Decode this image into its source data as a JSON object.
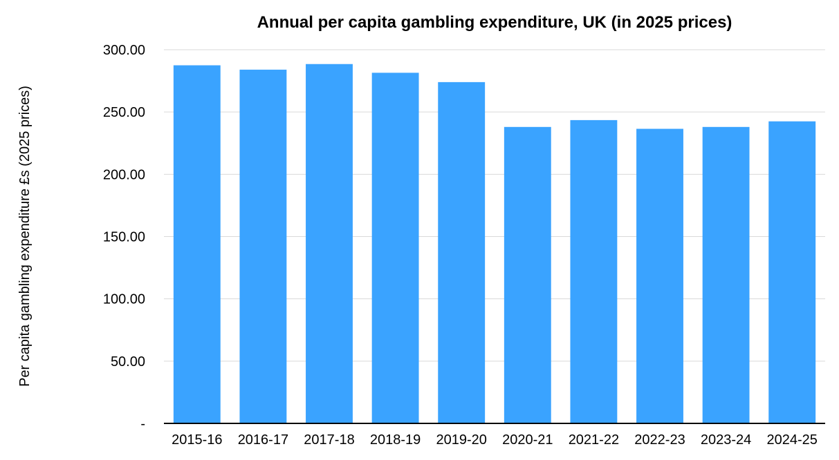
{
  "chart_data": {
    "type": "bar",
    "title": "Annual per capita gambling expenditure, UK (in 2025 prices)",
    "xlabel": "",
    "ylabel": "Per capita gambling expenditure £s (2025 prices)",
    "categories": [
      "2015-16",
      "2016-17",
      "2017-18",
      "2018-19",
      "2019-20",
      "2020-21",
      "2021-22",
      "2022-23",
      "2023-24",
      "2024-25"
    ],
    "values": [
      287.5,
      284.0,
      288.5,
      281.5,
      274.0,
      238.0,
      243.5,
      236.5,
      238.0,
      242.5
    ],
    "ylim": [
      0,
      300
    ],
    "yticks": [
      0,
      50,
      100,
      150,
      200,
      250,
      300
    ],
    "ytick_labels": [
      "-",
      "50.00",
      "100.00",
      "150.00",
      "200.00",
      "250.00",
      "300.00"
    ],
    "grid": true,
    "legend": "none",
    "colors": {
      "bar": "#3aa3ff",
      "grid": "#d9d9d9",
      "axis": "#000000"
    }
  }
}
